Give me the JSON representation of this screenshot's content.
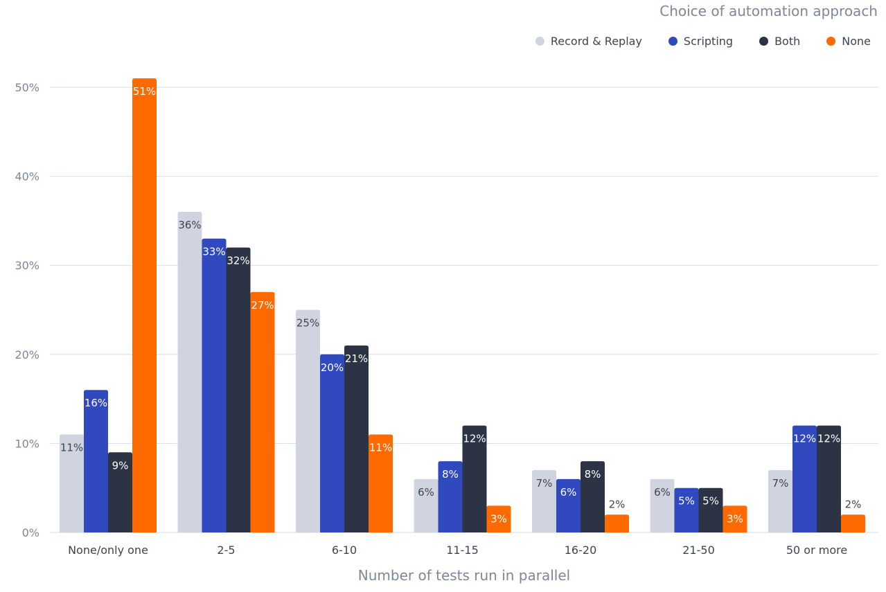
{
  "chart_data": {
    "type": "bar",
    "legend_title": "Choice of automation approach",
    "title": "",
    "xlabel": "Number of tests run in parallel",
    "ylabel": "",
    "ylim": [
      0,
      50
    ],
    "y_ticks": [
      0,
      10,
      20,
      30,
      40,
      50
    ],
    "y_tick_labels": [
      "0%",
      "10%",
      "20%",
      "30%",
      "40%",
      "50%"
    ],
    "categories": [
      "None/only one",
      "2-5",
      "6-10",
      "11-15",
      "16-20",
      "21-50",
      "50 or more"
    ],
    "series": [
      {
        "name": "Record & Replay",
        "color": "#d0d4e0",
        "label_color": "#3d4450",
        "values": [
          11,
          36,
          25,
          6,
          7,
          6,
          7
        ],
        "labels": [
          "11%",
          "36%",
          "25%",
          "6%",
          "7%",
          "6%",
          "7%"
        ]
      },
      {
        "name": "Scripting",
        "color": "#3149be",
        "label_color": "#ffffff",
        "values": [
          16,
          33,
          20,
          8,
          6,
          5,
          12
        ],
        "labels": [
          "16%",
          "33%",
          "20%",
          "8%",
          "6%",
          "5%",
          "12%"
        ]
      },
      {
        "name": "Both",
        "color": "#2c3344",
        "label_color": "#ffffff",
        "values": [
          9,
          32,
          21,
          12,
          8,
          5,
          12
        ],
        "labels": [
          "9%",
          "32%",
          "21%",
          "12%",
          "8%",
          "5%",
          "12%"
        ]
      },
      {
        "name": "None",
        "color": "#ff6a00",
        "label_color": "#ffffff",
        "values": [
          51,
          27,
          11,
          3,
          2,
          3,
          2
        ],
        "labels": [
          "51%",
          "27%",
          "11%",
          "3%",
          "2%",
          "3%",
          "2%"
        ]
      }
    ],
    "grid": true,
    "legend_position": "top-right"
  },
  "colors": {
    "grid": "#d5dde8",
    "axis_text": "#7d8797",
    "category_text": "#3d4450",
    "outside_label_text": "#3d4450"
  }
}
